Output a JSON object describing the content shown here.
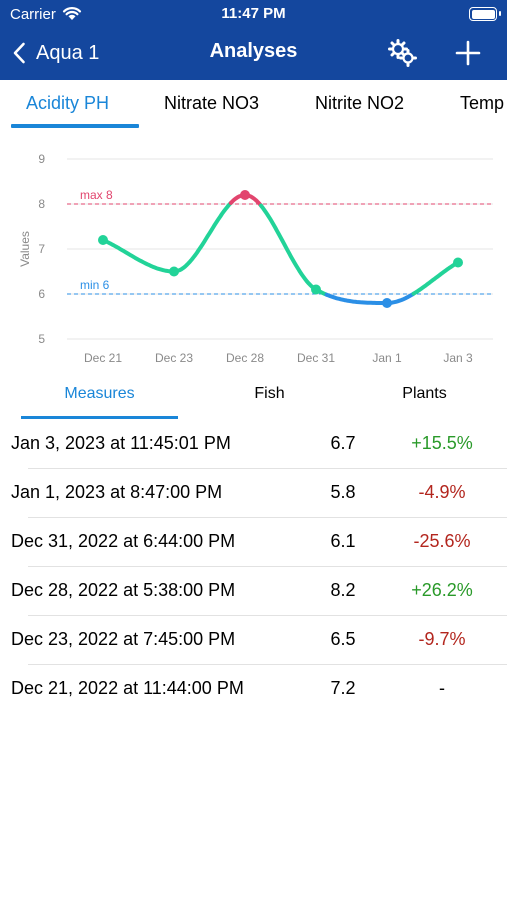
{
  "status_bar": {
    "carrier": "Carrier",
    "time": "11:47 PM"
  },
  "nav": {
    "back_label": "Aqua 1",
    "title": "Analyses"
  },
  "analysis_tabs": [
    {
      "label": "Acidity PH",
      "active": true
    },
    {
      "label": "Nitrate NO3",
      "active": false
    },
    {
      "label": "Nitrite NO2",
      "active": false
    },
    {
      "label": "Temp",
      "active": false
    }
  ],
  "chart_data": {
    "type": "line",
    "ylabel": "Values",
    "ylim": [
      5,
      9
    ],
    "y_ticks": [
      5,
      6,
      7,
      8,
      9
    ],
    "categories": [
      "Dec 21",
      "Dec 23",
      "Dec 28",
      "Dec 31",
      "Jan 1",
      "Jan 3"
    ],
    "series": [
      {
        "values": [
          7.2,
          6.5,
          8.2,
          6.1,
          5.8,
          6.7
        ]
      }
    ],
    "thresholds": [
      {
        "label": "max 8",
        "value": 8,
        "color": "#e2456e"
      },
      {
        "label": "min 6",
        "value": 6,
        "color": "#2b8fe6"
      }
    ],
    "colors": {
      "in_range": "#22d398",
      "above_max": "#e2456e",
      "below_min": "#2b8fe6"
    },
    "grid": true
  },
  "segment_tabs": [
    {
      "label": "Measures",
      "active": true
    },
    {
      "label": "Fish",
      "active": false
    },
    {
      "label": "Plants",
      "active": false
    }
  ],
  "measures": [
    {
      "date": "Jan 3, 2023 at 11:45:01 PM",
      "value": "6.7",
      "change": "+15.5%",
      "trend": "up"
    },
    {
      "date": "Jan 1, 2023 at 8:47:00 PM",
      "value": "5.8",
      "change": "-4.9%",
      "trend": "down"
    },
    {
      "date": "Dec 31, 2022 at 6:44:00 PM",
      "value": "6.1",
      "change": "-25.6%",
      "trend": "down"
    },
    {
      "date": "Dec 28, 2022 at 5:38:00 PM",
      "value": "8.2",
      "change": "+26.2%",
      "trend": "up"
    },
    {
      "date": "Dec 23, 2022 at 7:45:00 PM",
      "value": "6.5",
      "change": "-9.7%",
      "trend": "down"
    },
    {
      "date": "Dec 21, 2022 at 11:44:00 PM",
      "value": "7.2",
      "change": "-",
      "trend": "none"
    }
  ],
  "trend_colors": {
    "up": "#2a9a2a",
    "down": "#b3261e",
    "none": "#000000"
  }
}
